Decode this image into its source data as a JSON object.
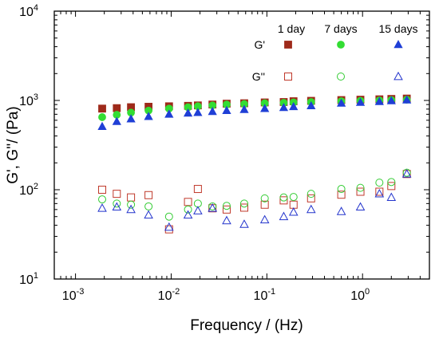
{
  "chart_data": {
    "type": "scatter",
    "xlabel": "Frequency / (Hz)",
    "ylabel": "G', G''/ (Pa)",
    "xscale": "log",
    "yscale": "log",
    "xlim": [
      0.0006,
      5
    ],
    "ylim": [
      10,
      10000
    ],
    "x_ticks": [
      {
        "value": 0.001,
        "base": "10",
        "exp": "-3"
      },
      {
        "value": 0.01,
        "base": "10",
        "exp": "-2"
      },
      {
        "value": 0.1,
        "base": "10",
        "exp": "-1"
      },
      {
        "value": 1,
        "base": "10",
        "exp": "0"
      }
    ],
    "y_ticks": [
      {
        "value": 10,
        "base": "10",
        "exp": "1"
      },
      {
        "value": 100,
        "base": "10",
        "exp": "2"
      },
      {
        "value": 1000,
        "base": "10",
        "exp": "3"
      },
      {
        "value": 10000,
        "base": "10",
        "exp": "4"
      }
    ],
    "legend": {
      "position": "top-right",
      "rows": [
        "G'",
        "G''"
      ],
      "columns": [
        "1 day",
        "7 days",
        "15 days"
      ]
    },
    "series": [
      {
        "name": "G' 1 day",
        "marker": "square",
        "filled": true,
        "color": "#9e2a1a",
        "points": [
          [
            0.0019,
            810
          ],
          [
            0.0027,
            820
          ],
          [
            0.0038,
            840
          ],
          [
            0.0058,
            850
          ],
          [
            0.0095,
            860
          ],
          [
            0.015,
            870
          ],
          [
            0.019,
            880
          ],
          [
            0.027,
            900
          ],
          [
            0.038,
            920
          ],
          [
            0.058,
            930
          ],
          [
            0.095,
            950
          ],
          [
            0.15,
            960
          ],
          [
            0.19,
            980
          ],
          [
            0.29,
            990
          ],
          [
            0.6,
            1010
          ],
          [
            0.95,
            1020
          ],
          [
            1.5,
            1030
          ],
          [
            2.0,
            1040
          ],
          [
            2.9,
            1050
          ]
        ]
      },
      {
        "name": "G' 7 days",
        "marker": "circle",
        "filled": true,
        "color": "#33dd33",
        "points": [
          [
            0.0019,
            650
          ],
          [
            0.0027,
            690
          ],
          [
            0.0038,
            730
          ],
          [
            0.0058,
            770
          ],
          [
            0.0095,
            810
          ],
          [
            0.015,
            840
          ],
          [
            0.019,
            860
          ],
          [
            0.027,
            880
          ],
          [
            0.038,
            900
          ],
          [
            0.058,
            910
          ],
          [
            0.095,
            930
          ],
          [
            0.15,
            940
          ],
          [
            0.19,
            950
          ],
          [
            0.29,
            960
          ],
          [
            0.6,
            980
          ],
          [
            0.95,
            990
          ],
          [
            1.5,
            1000
          ],
          [
            2.0,
            1010
          ],
          [
            2.9,
            1020
          ]
        ]
      },
      {
        "name": "G' 15 days",
        "marker": "triangle",
        "filled": true,
        "color": "#1f3fd6",
        "points": [
          [
            0.0019,
            510
          ],
          [
            0.0027,
            580
          ],
          [
            0.0038,
            620
          ],
          [
            0.0058,
            660
          ],
          [
            0.0095,
            700
          ],
          [
            0.015,
            720
          ],
          [
            0.019,
            730
          ],
          [
            0.027,
            750
          ],
          [
            0.038,
            770
          ],
          [
            0.058,
            790
          ],
          [
            0.095,
            810
          ],
          [
            0.15,
            830
          ],
          [
            0.19,
            850
          ],
          [
            0.29,
            870
          ],
          [
            0.6,
            930
          ],
          [
            0.95,
            950
          ],
          [
            1.5,
            970
          ],
          [
            2.0,
            990
          ],
          [
            2.9,
            1010
          ]
        ]
      },
      {
        "name": "G'' 1 day",
        "marker": "square",
        "filled": false,
        "color": "#c0392b",
        "points": [
          [
            0.0019,
            100
          ],
          [
            0.0027,
            90
          ],
          [
            0.0038,
            82
          ],
          [
            0.0058,
            87
          ],
          [
            0.0095,
            36
          ],
          [
            0.015,
            73
          ],
          [
            0.019,
            102
          ],
          [
            0.027,
            62
          ],
          [
            0.038,
            60
          ],
          [
            0.058,
            63
          ],
          [
            0.095,
            68
          ],
          [
            0.15,
            76
          ],
          [
            0.19,
            68
          ],
          [
            0.29,
            80
          ],
          [
            0.6,
            88
          ],
          [
            0.95,
            95
          ],
          [
            1.5,
            95
          ],
          [
            2.0,
            110
          ],
          [
            2.9,
            150
          ]
        ]
      },
      {
        "name": "G'' 7 days",
        "marker": "circle",
        "filled": false,
        "color": "#33cc33",
        "points": [
          [
            0.0019,
            78
          ],
          [
            0.0027,
            70
          ],
          [
            0.0038,
            68
          ],
          [
            0.0058,
            65
          ],
          [
            0.0095,
            50
          ],
          [
            0.015,
            60
          ],
          [
            0.019,
            70
          ],
          [
            0.027,
            65
          ],
          [
            0.038,
            66
          ],
          [
            0.058,
            70
          ],
          [
            0.095,
            80
          ],
          [
            0.15,
            82
          ],
          [
            0.19,
            83
          ],
          [
            0.29,
            90
          ],
          [
            0.6,
            102
          ],
          [
            0.95,
            105
          ],
          [
            1.5,
            120
          ],
          [
            2.0,
            122
          ],
          [
            2.9,
            155
          ]
        ]
      },
      {
        "name": "G'' 15 days",
        "marker": "triangle",
        "filled": false,
        "color": "#2233cc",
        "points": [
          [
            0.0019,
            62
          ],
          [
            0.0027,
            64
          ],
          [
            0.0038,
            60
          ],
          [
            0.0058,
            52
          ],
          [
            0.0095,
            38
          ],
          [
            0.015,
            52
          ],
          [
            0.019,
            58
          ],
          [
            0.027,
            62
          ],
          [
            0.038,
            45
          ],
          [
            0.058,
            41
          ],
          [
            0.095,
            46
          ],
          [
            0.15,
            50
          ],
          [
            0.19,
            56
          ],
          [
            0.29,
            60
          ],
          [
            0.6,
            57
          ],
          [
            0.95,
            64
          ],
          [
            1.5,
            90
          ],
          [
            2.0,
            82
          ],
          [
            2.9,
            150
          ]
        ]
      }
    ]
  }
}
